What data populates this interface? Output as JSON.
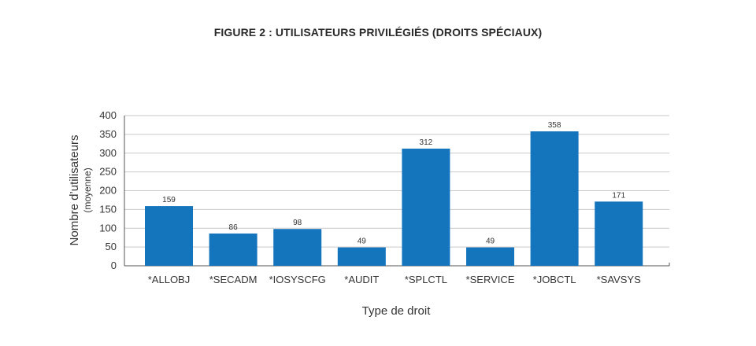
{
  "chart_data": {
    "type": "bar",
    "title": "FIGURE 2 : UTILISATEURS PRIVILÉGIÉS (DROITS SPÉCIAUX)",
    "xlabel": "Type de droit",
    "ylabel": "Nombre d’utilisateurs",
    "ylabel_sub": "(moyenne)",
    "categories": [
      "*ALLOBJ",
      "*SECADM",
      "*IOSYSCFG",
      "*AUDIT",
      "*SPLCTL",
      "*SERVICE",
      "*JOBCTL",
      "*SAVSYS"
    ],
    "values": [
      159,
      86,
      98,
      49,
      312,
      49,
      358,
      171
    ],
    "ylim": [
      0,
      400
    ],
    "yticks": [
      0,
      50,
      100,
      150,
      200,
      250,
      300,
      350,
      400
    ],
    "grid": true,
    "bar_color": "#1474bc"
  }
}
